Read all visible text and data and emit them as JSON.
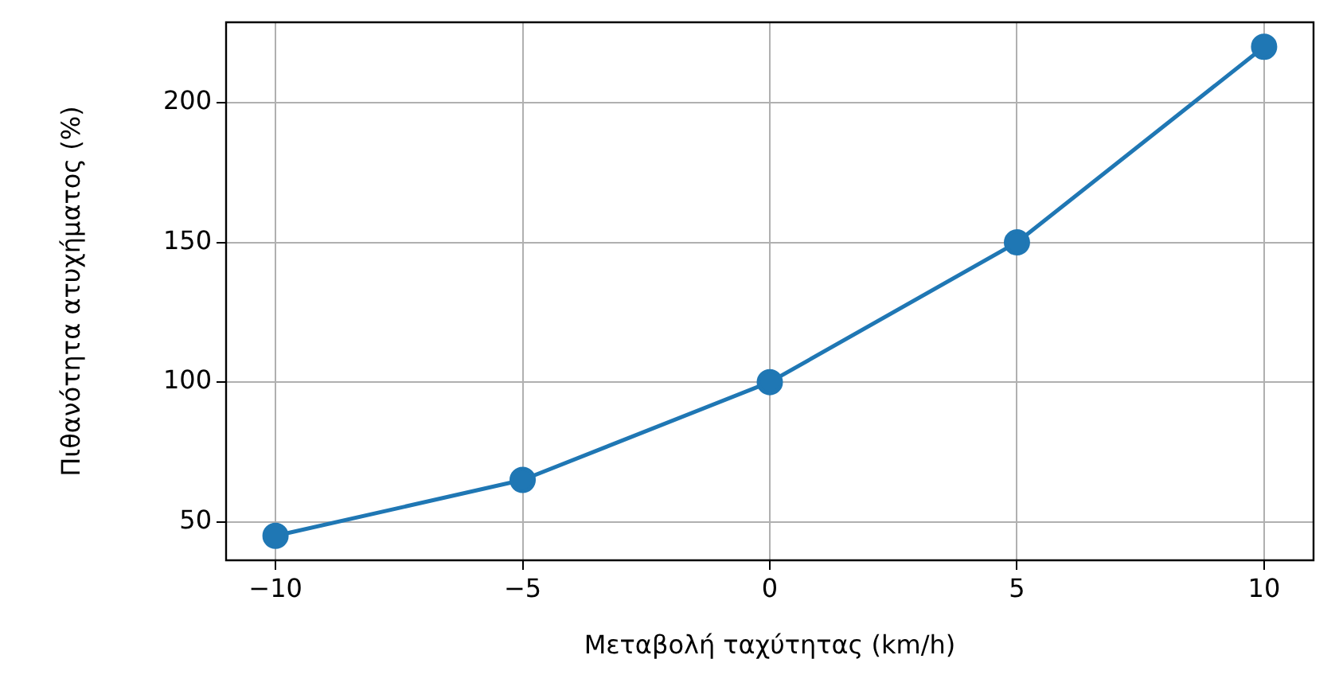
{
  "chart_data": {
    "type": "line",
    "xlabel": "Μεταβολή ταχύτητας (km/h)",
    "ylabel": "Πιθανότητα ατυχήματος (%)",
    "x": [
      -10,
      -5,
      0,
      5,
      10
    ],
    "series": [
      {
        "color": "#1f77b4",
        "values": [
          45,
          65,
          100,
          150,
          220
        ]
      }
    ],
    "xlim": [
      -11,
      11
    ],
    "xticks": [
      {
        "value": -10,
        "label": "−10"
      },
      {
        "value": -5,
        "label": "−5"
      },
      0,
      5,
      10
    ],
    "ylim": [
      36.25,
      228.75
    ],
    "yticks": [
      50,
      100,
      150,
      200
    ],
    "grid": true,
    "marker": "circle",
    "line_style": "solid",
    "legend": false
  }
}
